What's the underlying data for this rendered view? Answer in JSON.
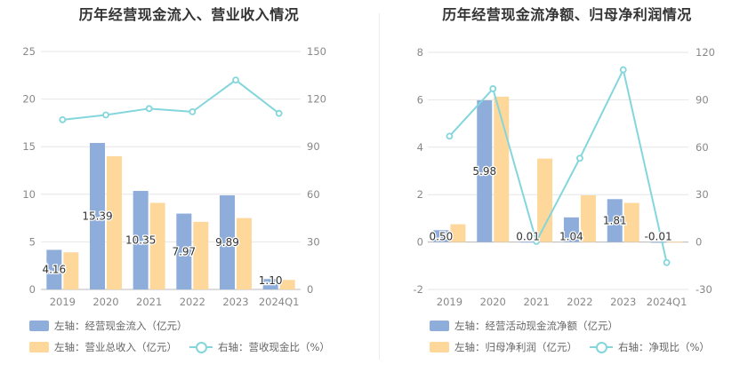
{
  "colors": {
    "bar_primary": "#8eaddb",
    "bar_secondary": "#fed79b",
    "line": "#84d6dd",
    "grid": "#e6e6e6",
    "axis_text": "#888888"
  },
  "chart_data": [
    {
      "type": "bar",
      "title": "历年经营现金流入、营业收入情况",
      "categories": [
        "2019",
        "2020",
        "2021",
        "2022",
        "2023",
        "2024Q1"
      ],
      "left_axis": {
        "ticks": [
          "0",
          "5",
          "10",
          "15",
          "20",
          "25"
        ],
        "ylim": [
          0,
          25
        ]
      },
      "right_axis": {
        "ticks": [
          "0",
          "30",
          "60",
          "90",
          "120",
          "150"
        ],
        "ylim": [
          0,
          150
        ]
      },
      "series": [
        {
          "name": "左轴：经营现金流入（亿元）",
          "kind": "bar",
          "axis": "left",
          "values": [
            4.16,
            15.39,
            10.35,
            7.97,
            9.89,
            1.1
          ],
          "labels": [
            "4.16",
            "15.39",
            "10.35",
            "7.97",
            "9.89",
            "1.10"
          ]
        },
        {
          "name": "左轴：营业总收入（亿元）",
          "kind": "bar",
          "axis": "left",
          "values": [
            3.9,
            14.0,
            9.1,
            7.1,
            7.5,
            1.0
          ]
        },
        {
          "name": "右轴：营收现金比（%）",
          "kind": "line",
          "axis": "right",
          "values": [
            107,
            110,
            114,
            112,
            132,
            111
          ]
        }
      ]
    },
    {
      "type": "bar",
      "title": "历年经营现金流净额、归母净利润情况",
      "categories": [
        "2019",
        "2020",
        "2021",
        "2022",
        "2023",
        "2024Q1"
      ],
      "left_axis": {
        "ticks": [
          "-2",
          "0",
          "2",
          "4",
          "6",
          "8"
        ],
        "ylim": [
          -2,
          8
        ]
      },
      "right_axis": {
        "ticks": [
          "-30",
          "0",
          "30",
          "60",
          "90",
          "120"
        ],
        "ylim": [
          -30,
          120
        ]
      },
      "series": [
        {
          "name": "左轴：经营活动现金流净额（亿元）",
          "kind": "bar",
          "axis": "left",
          "values": [
            0.5,
            5.98,
            0.01,
            1.04,
            1.81,
            -0.01
          ],
          "labels": [
            "0.50",
            "5.98",
            "0.01",
            "1.04",
            "1.81",
            "-0.01"
          ]
        },
        {
          "name": "左轴：归母净利润（亿元）",
          "kind": "bar",
          "axis": "left",
          "values": [
            0.75,
            6.13,
            3.52,
            1.97,
            1.65,
            0.01
          ]
        },
        {
          "name": "右轴：净现比（%）",
          "kind": "line",
          "axis": "right",
          "values": [
            67,
            97,
            0.4,
            53,
            109,
            -13
          ]
        }
      ]
    }
  ]
}
